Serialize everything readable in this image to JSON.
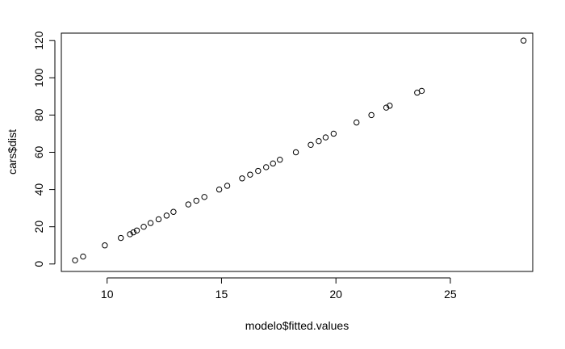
{
  "chart_data": {
    "type": "scatter",
    "xlabel": "modelo$fitted.values",
    "ylabel": "cars$dist",
    "xlim": [
      8.0,
      28.6
    ],
    "ylim": [
      -4.0,
      124.0
    ],
    "xticks": [
      10,
      15,
      20,
      25
    ],
    "yticks": [
      0,
      20,
      40,
      60,
      80,
      100,
      120
    ],
    "grid": false,
    "points": [
      [
        8.6,
        2
      ],
      [
        8.95,
        4
      ],
      [
        9.9,
        10
      ],
      [
        10.6,
        14
      ],
      [
        11.0,
        16
      ],
      [
        11.15,
        17
      ],
      [
        11.3,
        18
      ],
      [
        11.6,
        20
      ],
      [
        11.9,
        22
      ],
      [
        12.25,
        24
      ],
      [
        12.6,
        26
      ],
      [
        12.9,
        28
      ],
      [
        13.55,
        32
      ],
      [
        13.9,
        34
      ],
      [
        14.25,
        36
      ],
      [
        14.9,
        40
      ],
      [
        15.25,
        42
      ],
      [
        15.9,
        46
      ],
      [
        16.25,
        48
      ],
      [
        16.6,
        50
      ],
      [
        16.95,
        52
      ],
      [
        17.25,
        54
      ],
      [
        17.55,
        56
      ],
      [
        18.25,
        60
      ],
      [
        18.9,
        64
      ],
      [
        19.25,
        66
      ],
      [
        19.55,
        68
      ],
      [
        19.9,
        70
      ],
      [
        20.9,
        76
      ],
      [
        21.55,
        80
      ],
      [
        22.2,
        84
      ],
      [
        22.35,
        85
      ],
      [
        23.55,
        92
      ],
      [
        23.75,
        93
      ],
      [
        28.2,
        120
      ]
    ]
  }
}
